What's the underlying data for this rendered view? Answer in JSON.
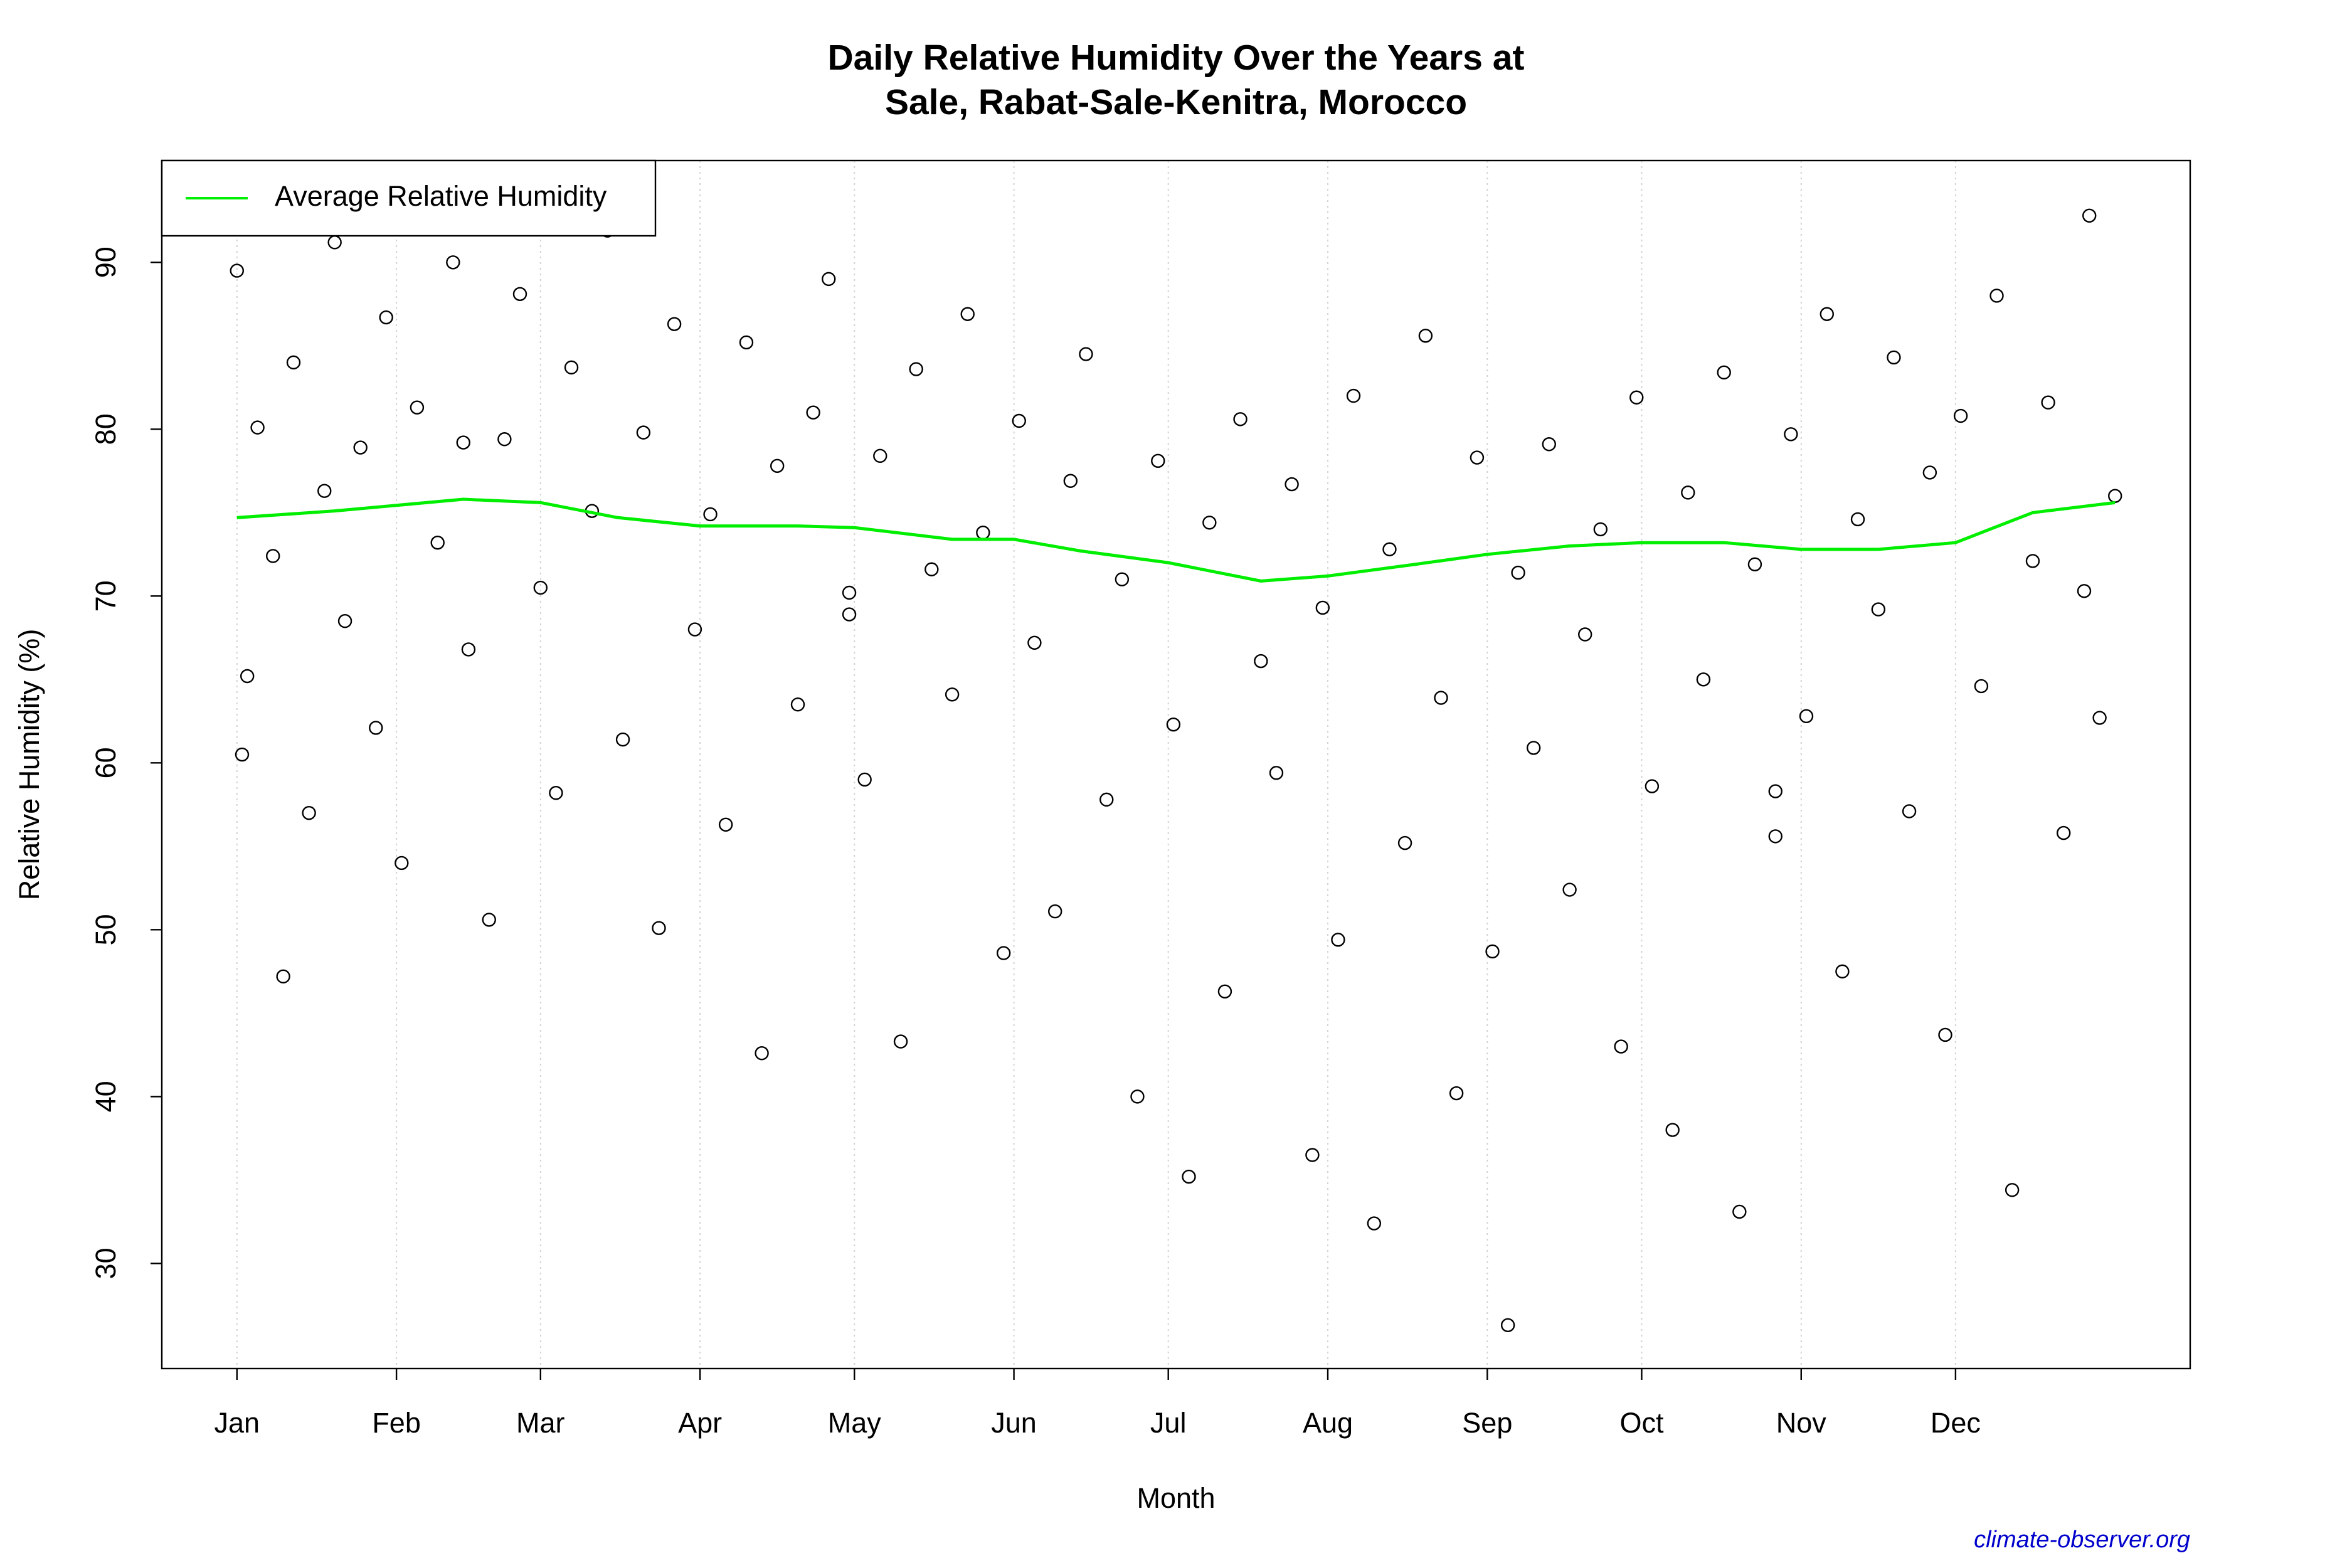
{
  "chart_data": {
    "type": "scatter",
    "title": [
      "Daily Relative Humidity Over the Years at",
      "Sale, Rabat-Sale-Kenitra, Morocco"
    ],
    "xlabel": "Month",
    "ylabel": "Relative Humidity  (%)",
    "source": "climate-observer.org",
    "xlim": [
      -13.6,
      380.6
    ],
    "ylim": [
      23.7,
      96.1
    ],
    "xticks": [
      {
        "value": 1,
        "label": "Jan"
      },
      {
        "value": 32,
        "label": "Feb"
      },
      {
        "value": 60,
        "label": "Mar"
      },
      {
        "value": 91,
        "label": "Apr"
      },
      {
        "value": 121,
        "label": "May"
      },
      {
        "value": 152,
        "label": "Jun"
      },
      {
        "value": 182,
        "label": "Jul"
      },
      {
        "value": 213,
        "label": "Aug"
      },
      {
        "value": 244,
        "label": "Sep"
      },
      {
        "value": 274,
        "label": "Oct"
      },
      {
        "value": 305,
        "label": "Nov"
      },
      {
        "value": 335,
        "label": "Dec"
      }
    ],
    "yticks": [
      30,
      40,
      50,
      60,
      70,
      80,
      90
    ],
    "grid": "x",
    "legend": "top-left",
    "series": [
      {
        "kind": "points",
        "color": "#000000",
        "x": [
          1,
          3,
          5,
          8,
          10,
          12,
          15,
          18,
          20,
          22,
          25,
          28,
          30,
          33,
          36,
          40,
          43,
          46,
          50,
          53,
          56,
          60,
          63,
          66,
          70,
          73,
          76,
          80,
          83,
          86,
          90,
          93,
          96,
          100,
          103,
          106,
          110,
          113,
          116,
          120,
          123,
          126,
          130,
          133,
          136,
          140,
          143,
          146,
          150,
          153,
          156,
          160,
          163,
          166,
          170,
          173,
          176,
          180,
          183,
          186,
          190,
          193,
          196,
          200,
          203,
          206,
          210,
          212,
          215,
          218,
          222,
          225,
          228,
          232,
          235,
          238,
          242,
          245,
          248,
          250,
          253,
          256,
          260,
          263,
          266,
          270,
          273,
          276,
          280,
          283,
          286,
          290,
          293,
          296,
          300,
          303,
          306,
          310,
          313,
          316,
          320,
          323,
          326,
          330,
          333,
          336,
          340,
          343,
          346,
          350,
          353,
          356,
          360,
          361,
          363,
          366,
          2,
          45,
          120,
          300
        ],
        "values": [
          89.5,
          65.2,
          80.1,
          72.4,
          47.2,
          84.0,
          57.0,
          76.3,
          91.2,
          68.5,
          78.9,
          62.1,
          86.7,
          54.0,
          81.3,
          73.2,
          90.0,
          66.8,
          50.6,
          79.4,
          88.1,
          70.5,
          58.2,
          83.7,
          75.1,
          91.9,
          61.4,
          79.8,
          50.1,
          86.3,
          68.0,
          74.9,
          56.3,
          85.2,
          42.6,
          77.8,
          63.5,
          81.0,
          89.0,
          70.2,
          59.0,
          78.4,
          43.3,
          83.6,
          71.6,
          64.1,
          86.9,
          73.8,
          48.6,
          80.5,
          67.2,
          51.1,
          76.9,
          84.5,
          57.8,
          71.0,
          40.0,
          78.1,
          62.3,
          35.2,
          74.4,
          46.3,
          80.6,
          66.1,
          59.4,
          76.7,
          36.5,
          69.3,
          49.4,
          82.0,
          32.4,
          72.8,
          55.2,
          85.6,
          63.9,
          40.2,
          78.3,
          48.7,
          26.3,
          71.4,
          60.9,
          79.1,
          52.4,
          67.7,
          74.0,
          43.0,
          81.9,
          58.6,
          38.0,
          76.2,
          65.0,
          83.4,
          33.1,
          71.9,
          55.6,
          79.7,
          62.8,
          86.9,
          47.5,
          74.6,
          69.2,
          84.3,
          57.1,
          77.4,
          43.7,
          80.8,
          64.6,
          88.0,
          34.4,
          72.1,
          81.6,
          55.8,
          70.3,
          92.8,
          62.7,
          76.0,
          60.5,
          79.2,
          68.9,
          58.3
        ]
      },
      {
        "kind": "line",
        "name": "Average Relative Humidity",
        "color": "#00ee00",
        "x": [
          1,
          20,
          45,
          60,
          75,
          91,
          110,
          121,
          140,
          152,
          165,
          182,
          200,
          213,
          230,
          244,
          260,
          274,
          290,
          305,
          320,
          335,
          350,
          366
        ],
        "values": [
          74.7,
          75.1,
          75.8,
          75.6,
          74.7,
          74.2,
          74.2,
          74.1,
          73.4,
          73.4,
          72.7,
          72.0,
          70.9,
          71.2,
          71.9,
          72.5,
          73.0,
          73.2,
          73.2,
          72.8,
          72.8,
          73.2,
          75.0,
          75.6
        ]
      }
    ]
  }
}
